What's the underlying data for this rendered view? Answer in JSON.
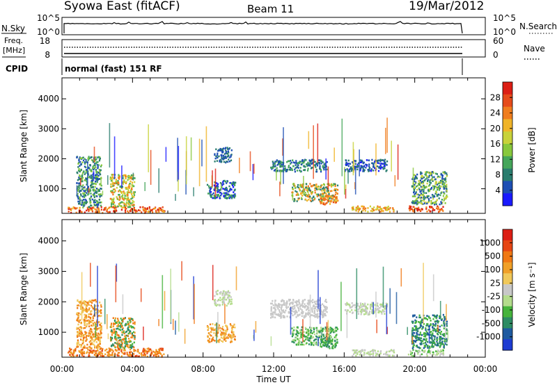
{
  "header": {
    "station": "Syowa East (fitACF)",
    "beam": "Beam 11",
    "date": "19/Mar/2012"
  },
  "top_panels": {
    "nsky_label": "N.Sky",
    "nsky_ticks": [
      "10^5",
      "10^0"
    ],
    "nsearch_label": "N.Search",
    "nsearch_ticks": [
      "10^5",
      "10^0"
    ],
    "freq_label_1": "Freq.",
    "freq_label_2": "[MHz]",
    "freq_ticks": [
      "18",
      "8"
    ],
    "nave_label": "Nave",
    "nave_ticks": [
      "60",
      "0"
    ],
    "cpid_label": "CPID",
    "cpid_text": "normal (fast) 151 RF"
  },
  "chart_data": [
    {
      "type": "heatmap",
      "name": "power",
      "ylabel": "Slant Range [km]",
      "xlabel": "Time UT",
      "x_ticks": [
        "00:00",
        "04:00",
        "08:00",
        "12:00",
        "16:00",
        "20:00",
        "00:00"
      ],
      "y_ticks": [
        1000,
        2000,
        3000,
        4000
      ],
      "ylim": [
        180,
        4700
      ],
      "xlim_hours": [
        0,
        24
      ],
      "colorbar": {
        "label": "Power [dB]",
        "ticks": [
          "4",
          "8",
          "12",
          "16",
          "20",
          "24",
          "28"
        ],
        "colors": [
          "#1a1aff",
          "#1e4fb4",
          "#2a7d6e",
          "#45a65a",
          "#88c83c",
          "#c8d23a",
          "#f0b428",
          "#f07d1e",
          "#e64b1a",
          "#dc1e14"
        ]
      },
      "echo_regions": [
        {
          "t0": 0.3,
          "t1": 5.8,
          "r0": 220,
          "r1": 420,
          "colors": [
            7,
            8,
            9,
            6
          ]
        },
        {
          "t0": 0.8,
          "t1": 2.2,
          "r0": 400,
          "r1": 2100,
          "colors": [
            1,
            2,
            3,
            4
          ]
        },
        {
          "t0": 2.7,
          "t1": 4.1,
          "r0": 400,
          "r1": 1500,
          "colors": [
            3,
            4,
            5,
            6,
            7
          ]
        },
        {
          "t0": 8.2,
          "t1": 9.8,
          "r0": 700,
          "r1": 1300,
          "colors": [
            0,
            1,
            2,
            3
          ]
        },
        {
          "t0": 8.6,
          "t1": 9.6,
          "r0": 1900,
          "r1": 2400,
          "colors": [
            1,
            2
          ]
        },
        {
          "t0": 11.8,
          "t1": 15.0,
          "r0": 1600,
          "r1": 2000,
          "colors": [
            1,
            2,
            3
          ]
        },
        {
          "t0": 13.0,
          "t1": 15.6,
          "r0": 600,
          "r1": 1200,
          "colors": [
            2,
            4,
            6,
            7
          ]
        },
        {
          "t0": 14.6,
          "t1": 15.6,
          "r0": 500,
          "r1": 800,
          "colors": [
            6,
            7,
            8
          ]
        },
        {
          "t0": 16.0,
          "t1": 18.4,
          "r0": 1600,
          "r1": 2000,
          "colors": [
            0,
            1,
            2
          ]
        },
        {
          "t0": 16.4,
          "t1": 18.8,
          "r0": 250,
          "r1": 450,
          "colors": [
            5,
            6,
            7
          ]
        },
        {
          "t0": 19.6,
          "t1": 21.6,
          "r0": 250,
          "r1": 450,
          "colors": [
            7,
            8,
            9
          ]
        },
        {
          "t0": 19.8,
          "t1": 21.8,
          "r0": 500,
          "r1": 1600,
          "colors": [
            1,
            2,
            3,
            4,
            5
          ]
        }
      ]
    },
    {
      "type": "heatmap",
      "name": "velocity",
      "ylabel": "Slant Range [km]",
      "xlabel": "Time UT",
      "x_ticks": [
        "00:00",
        "04:00",
        "08:00",
        "12:00",
        "16:00",
        "20:00",
        "00:00"
      ],
      "y_ticks": [
        1000,
        2000,
        3000,
        4000
      ],
      "ylim": [
        180,
        4700
      ],
      "xlim_hours": [
        0,
        24
      ],
      "colorbar": {
        "label": "Velocity [m s⁻¹]",
        "ticks": [
          "1000",
          "500",
          "100",
          "25",
          "-25",
          "-100",
          "-500",
          "-1000"
        ],
        "colors": [
          "#1e3cd2",
          "#1e5aa0",
          "#2d8c64",
          "#46b43c",
          "#b4dc8c",
          "#c8c8c8",
          "#f0c85a",
          "#f0a028",
          "#f07814",
          "#e64614",
          "#dc1e14"
        ]
      },
      "echo_regions": [
        {
          "t0": 0.3,
          "t1": 5.8,
          "r0": 220,
          "r1": 500,
          "colors": [
            8,
            7,
            9
          ]
        },
        {
          "t0": 0.8,
          "t1": 2.2,
          "r0": 500,
          "r1": 2100,
          "colors": [
            7,
            8,
            6
          ]
        },
        {
          "t0": 2.7,
          "t1": 4.1,
          "r0": 500,
          "r1": 1500,
          "colors": [
            2,
            3,
            7,
            8
          ]
        },
        {
          "t0": 8.2,
          "t1": 9.8,
          "r0": 700,
          "r1": 1300,
          "colors": [
            6,
            7,
            8
          ]
        },
        {
          "t0": 8.6,
          "t1": 9.6,
          "r0": 1900,
          "r1": 2400,
          "colors": [
            4,
            5
          ]
        },
        {
          "t0": 11.8,
          "t1": 15.0,
          "r0": 1500,
          "r1": 2100,
          "colors": [
            5
          ]
        },
        {
          "t0": 13.0,
          "t1": 15.6,
          "r0": 600,
          "r1": 1200,
          "colors": [
            2,
            3,
            4
          ]
        },
        {
          "t0": 14.6,
          "t1": 15.6,
          "r0": 500,
          "r1": 800,
          "colors": [
            2,
            3
          ]
        },
        {
          "t0": 16.0,
          "t1": 18.4,
          "r0": 1600,
          "r1": 2000,
          "colors": [
            5,
            4
          ]
        },
        {
          "t0": 16.4,
          "t1": 18.8,
          "r0": 250,
          "r1": 450,
          "colors": [
            4,
            5
          ]
        },
        {
          "t0": 19.6,
          "t1": 21.6,
          "r0": 250,
          "r1": 450,
          "colors": [
            3,
            4,
            5
          ]
        },
        {
          "t0": 19.8,
          "t1": 21.8,
          "r0": 500,
          "r1": 1600,
          "colors": [
            1,
            2,
            3
          ]
        }
      ]
    }
  ]
}
